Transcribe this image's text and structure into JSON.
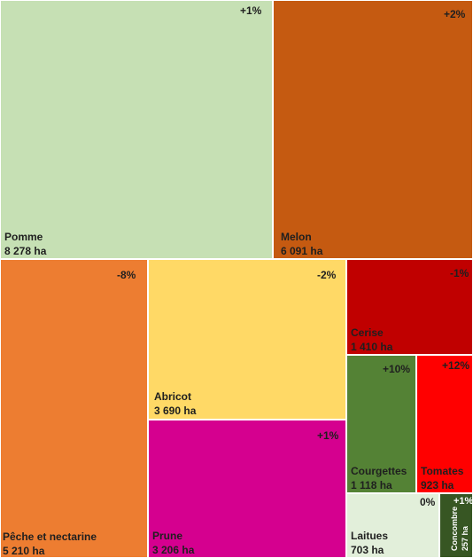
{
  "chart_data": {
    "type": "treemap",
    "unit": "ha",
    "items": [
      {
        "name": "Pomme",
        "area": "8 278 ha",
        "value": 8278,
        "change": "+1%",
        "color": "#c6e0b4"
      },
      {
        "name": "Melon",
        "area": "6 091 ha",
        "value": 6091,
        "change": "+2%",
        "color": "#c55a11"
      },
      {
        "name": "Pêche et nectarine",
        "area": "5 210 ha",
        "value": 5210,
        "change": "-8%",
        "color": "#ed7d31"
      },
      {
        "name": "Abricot",
        "area": "3 690 ha",
        "value": 3690,
        "change": "-2%",
        "color": "#ffd966"
      },
      {
        "name": "Prune",
        "area": "3 206 ha",
        "value": 3206,
        "change": "+1%",
        "color": "#d5008f"
      },
      {
        "name": "Cerise",
        "area": "1 410 ha",
        "value": 1410,
        "change": "-1%",
        "color": "#c00000"
      },
      {
        "name": "Courgettes",
        "area": "1 118 ha",
        "value": 1118,
        "change": "+10%",
        "color": "#548235"
      },
      {
        "name": "Tomates",
        "area": "923 ha",
        "value": 923,
        "change": "+12%",
        "color": "#ff0000"
      },
      {
        "name": "Laitues",
        "area": "703 ha",
        "value": 703,
        "change": "0%",
        "color": "#e2efda"
      },
      {
        "name": "Concombre",
        "area": "257 ha",
        "value": 257,
        "change": "+1%",
        "color": "#375623"
      }
    ]
  }
}
